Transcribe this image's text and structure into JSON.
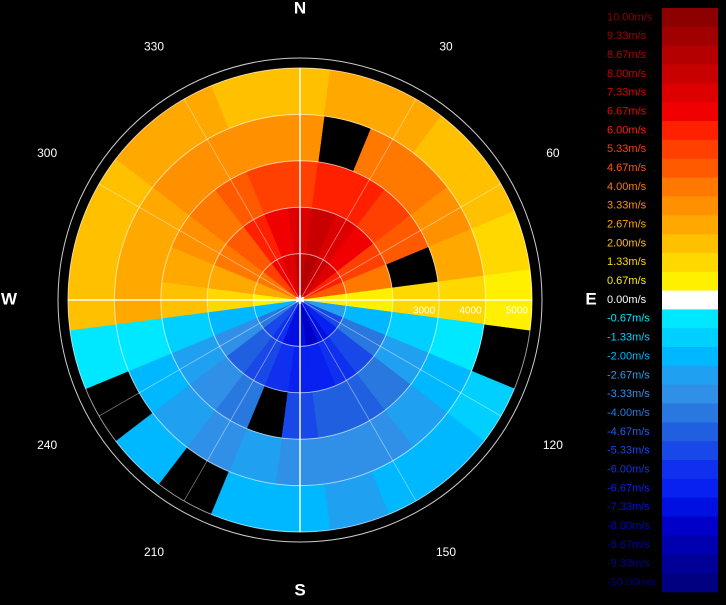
{
  "chart_data": {
    "type": "polar_velocity",
    "compass": {
      "labels": [
        "N",
        "E",
        "S",
        "W"
      ],
      "angles": [
        0,
        90,
        180,
        270
      ]
    },
    "angle_ticks": [
      30,
      60,
      120,
      150,
      210,
      240,
      300,
      330
    ],
    "rticks": [
      {
        "value": 1000,
        "label": null
      },
      {
        "value": 2000,
        "label": null
      },
      3000,
      4000,
      5000
    ],
    "range_bins": [
      0,
      1000,
      2000,
      3000,
      4000,
      5000
    ],
    "azimuths": [
      0,
      15,
      30,
      45,
      60,
      75,
      90,
      105,
      120,
      135,
      150,
      165,
      180,
      195,
      210,
      225,
      240,
      255,
      270,
      285,
      300,
      315,
      330,
      345
    ],
    "values": [
      [
        8,
        7.33,
        5.33,
        3.33,
        2
      ],
      [
        8.67,
        8,
        6,
        null,
        2.67
      ],
      [
        8,
        7.33,
        6,
        4,
        2.67
      ],
      [
        7.33,
        6.67,
        5.33,
        4,
        2
      ],
      [
        6,
        5.33,
        4.67,
        3.33,
        2
      ],
      [
        4.67,
        4,
        null,
        2.67,
        1.33
      ],
      [
        0.67,
        0.67,
        1.33,
        1.33,
        0.67
      ],
      [
        -2.67,
        -2,
        -1.33,
        -0.67,
        null
      ],
      [
        -5.33,
        -4,
        -2.67,
        -2,
        -1.33
      ],
      [
        -6.67,
        -5.33,
        -4,
        -2.67,
        -2
      ],
      [
        -7.33,
        -6,
        -4.67,
        -3.33,
        -2
      ],
      [
        -8,
        -6.67,
        -4.67,
        -3.33,
        -2.67
      ],
      [
        -7.33,
        -6.67,
        -5.33,
        -3.33,
        -2
      ],
      [
        -7.33,
        -6,
        null,
        -2.67,
        -2
      ],
      [
        -6,
        -5.33,
        -4,
        -3.33,
        null
      ],
      [
        -5.33,
        -4.67,
        -3.33,
        -2.67,
        -2
      ],
      [
        -4,
        -3.33,
        -2.67,
        -2,
        null
      ],
      [
        -2,
        -2,
        -1.33,
        -0.67,
        -0.67
      ],
      [
        0.67,
        1.33,
        2,
        2.67,
        2
      ],
      [
        2.67,
        2.67,
        2.67,
        2.67,
        2
      ],
      [
        4,
        4,
        3.33,
        2.67,
        2
      ],
      [
        5.33,
        4.67,
        4,
        3.33,
        2.67
      ],
      [
        6.67,
        6,
        4.67,
        3.33,
        2.67
      ],
      [
        7.33,
        6.67,
        5.33,
        3.33,
        2
      ]
    ],
    "colorbar": {
      "values": [
        10,
        9.33,
        8.67,
        8,
        7.33,
        6.67,
        6,
        5.33,
        4.67,
        4,
        3.33,
        2.67,
        2,
        1.33,
        0.67,
        0,
        -0.67,
        -1.33,
        -2,
        -2.67,
        -3.33,
        -4,
        -4.67,
        -5.33,
        -6,
        -6.67,
        -7.33,
        -8,
        -8.67,
        -9.33,
        -10
      ],
      "value_labels": [
        "10.00m/s",
        "9.33m/s",
        "8.67m/s",
        "8.00m/s",
        "7.33m/s",
        "6.67m/s",
        "6.00m/s",
        "5.33m/s",
        "4.67m/s",
        "4.00m/s",
        "3.33m/s",
        "2.67m/s",
        "2.00m/s",
        "1.33m/s",
        "0.67m/s",
        "0.00m/s",
        "-0.67m/s",
        "-1.33m/s",
        "-2.00m/s",
        "-2.67m/s",
        "-3.33m/s",
        "-4.00m/s",
        "-4.67m/s",
        "-5.33m/s",
        "-6.00m/s",
        "-6.67m/s",
        "-7.33m/s",
        "-8.00m/s",
        "-8.67m/s",
        "-9.33m/s",
        "-10.00m/s"
      ],
      "colors": [
        "#8c0000",
        "#a00000",
        "#b40000",
        "#c80000",
        "#dc0000",
        "#f00000",
        "#ff2000",
        "#ff4000",
        "#ff5a00",
        "#ff7800",
        "#ff9000",
        "#ffa800",
        "#ffc000",
        "#ffd800",
        "#fff000",
        "#ffffff",
        "#00e8ff",
        "#00d0ff",
        "#00b8ff",
        "#20a0f0",
        "#3090e8",
        "#2878e0",
        "#2060e0",
        "#1848e8",
        "#1030f0",
        "#0820f0",
        "#0010e0",
        "#0000c8",
        "#0000b0",
        "#000098",
        "#000080"
      ]
    }
  }
}
